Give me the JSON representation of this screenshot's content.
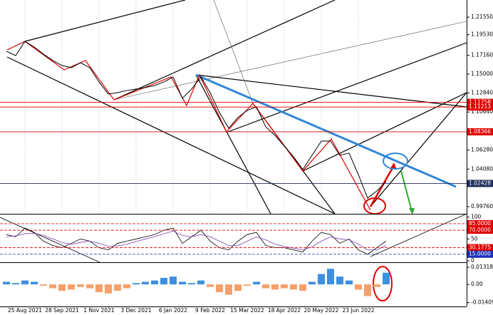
{
  "chart_data": [
    {
      "type": "line",
      "color": "#000000",
      "grid": true,
      "categories": [
        null,
        null,
        "25 Aug 2021",
        null,
        null,
        null,
        "28 Sep 2021",
        null,
        null,
        null,
        "1 Nov 2021",
        null,
        null,
        null,
        "3 Dec 2021",
        null,
        null,
        null,
        "6 Jan 2022",
        null,
        null,
        null,
        "9 Feb 2022",
        null,
        null,
        null,
        "15 Mar 2022",
        null,
        null,
        null,
        "18 Apr 2022",
        null,
        null,
        null,
        "20 May 2022",
        null,
        null,
        null,
        "23 Jun 2022",
        null,
        null,
        null,
        null,
        null,
        null,
        null,
        null,
        null,
        null,
        null
      ],
      "values": [
        1.1762,
        1.1713,
        1.1877,
        1.1811,
        1.173,
        1.1656,
        1.1599,
        1.1574,
        1.1631,
        1.1574,
        1.141,
        1.1271,
        1.1287,
        1.1312,
        1.1328,
        1.1345,
        1.1369,
        1.141,
        1.1467,
        1.1222,
        1.1328,
        1.1467,
        1.1287,
        1.1058,
        1.0878,
        1.1001,
        1.1083,
        1.1124,
        1.0894,
        1.0796,
        1.0673,
        1.055,
        1.0403,
        1.0567,
        1.073,
        1.073,
        1.0567,
        1.0591,
        1.0345,
        1.0075,
        1.0157,
        1.0264,
        null,
        null,
        null,
        null,
        null,
        null,
        null,
        null
      ],
      "ylim": [
        0.9894,
        1.2352
      ],
      "yticks": [
        {
          "value": 1.2155,
          "label": "1.21550"
        },
        {
          "value": 1.1953,
          "label": "1.19530"
        },
        {
          "value": 1.1716,
          "label": "1.17160"
        },
        {
          "value": 1.15,
          "label": "1.15000"
        },
        {
          "value": 1.1284,
          "label": "1.12840"
        },
        {
          "value": 1.1064,
          "label": "1.10640"
        },
        {
          "value": 1.0628,
          "label": "1.06280"
        },
        {
          "value": 1.0408,
          "label": "1.04080"
        },
        {
          "value": 0.9976,
          "label": "0.99760"
        }
      ],
      "levels": [
        {
          "value": 1.11758,
          "color": "#e00000"
        },
        {
          "value": 1.11213,
          "color": "#e00000"
        },
        {
          "value": 1.08366,
          "color": "#e00000"
        },
        {
          "value": 1.02428,
          "color": "#1f2d5c"
        }
      ]
    },
    {
      "type": "line",
      "grid": false,
      "series": [
        {
          "color": "#000000",
          "values": [
            60,
            55,
            75,
            65,
            45,
            35,
            30,
            40,
            50,
            45,
            30,
            25,
            40,
            45,
            50,
            55,
            60,
            70,
            75,
            40,
            55,
            70,
            45,
            30,
            25,
            45,
            60,
            65,
            35,
            30,
            30,
            25,
            20,
            45,
            65,
            60,
            40,
            50,
            25,
            15,
            30,
            45,
            null,
            null,
            null,
            null,
            null,
            null,
            null,
            null
          ]
        },
        {
          "color": "#7b3fb5",
          "values": [
            55,
            57,
            62,
            63,
            58,
            50,
            42,
            38,
            42,
            45,
            40,
            33,
            34,
            38,
            44,
            50,
            55,
            62,
            68,
            58,
            55,
            60,
            55,
            45,
            35,
            35,
            45,
            55,
            48,
            38,
            33,
            29,
            25,
            32,
            45,
            55,
            50,
            48,
            38,
            25,
            25,
            35,
            null,
            null,
            null,
            null,
            null,
            null,
            null,
            null
          ]
        }
      ],
      "ylim": [
        -5,
        106
      ],
      "yticks": [
        100,
        50,
        0
      ],
      "levels": [
        {
          "value": 85,
          "label": "85.0000",
          "color": "#e00000"
        },
        {
          "value": 70,
          "label": "70.0000",
          "color": "#e00000"
        },
        {
          "value": 30.1775,
          "label": "30.1775",
          "color": "#e00000"
        },
        {
          "value": 15,
          "label": "15.0000",
          "color": "#1a2fb8"
        }
      ]
    },
    {
      "type": "bar",
      "pos_color": "#3d8fe0",
      "neg_color": "#f5a06a",
      "values": [
        0.002,
        0.001,
        0.003,
        0.002,
        -0.001,
        -0.003,
        -0.005,
        -0.004,
        -0.002,
        -0.003,
        -0.006,
        -0.007,
        -0.005,
        -0.003,
        0.001,
        0.002,
        0.003,
        0.005,
        0.006,
        0.002,
        0.001,
        0.003,
        -0.002,
        -0.006,
        -0.008,
        -0.005,
        -0.001,
        0.002,
        -0.003,
        -0.004,
        -0.003,
        -0.004,
        -0.005,
        0.002,
        0.008,
        0.012,
        0.006,
        0.003,
        -0.004,
        -0.009,
        -0.002,
        0.009,
        null,
        null,
        null,
        null,
        null,
        null,
        null,
        null
      ],
      "ylim": [
        -0.0236,
        0.0165
      ],
      "yticks": [
        0.0131819,
        {
          "value": 0,
          "label": "0.00"
        },
        -0.0140999
      ]
    }
  ]
}
